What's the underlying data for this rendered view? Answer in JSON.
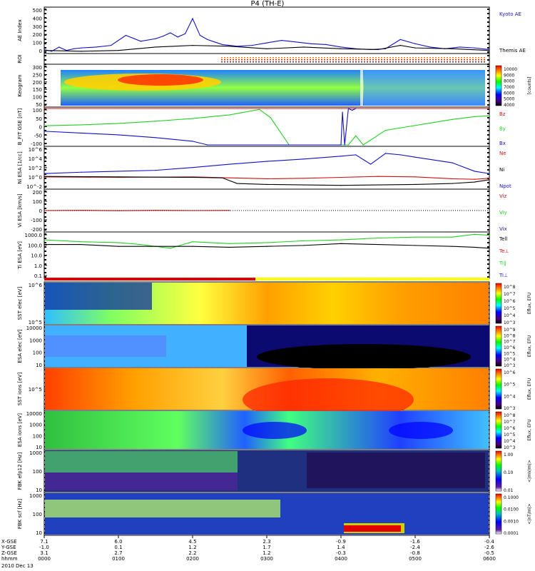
{
  "title": "P4 (TH-E)",
  "date": "2010 Dec 13",
  "colors": {
    "blue": "#1010c8",
    "red": "#d01010",
    "green": "#20d020",
    "black": "#000000"
  },
  "chart_data": [
    {
      "id": "ae",
      "type": "line",
      "ylabel": "AE Index",
      "ticks": [
        "0",
        "100",
        "200",
        "300",
        "400",
        "500"
      ],
      "ylim": [
        0,
        520
      ],
      "legend": [
        "Kyoto AE",
        "Themis AE"
      ],
      "series": [
        {
          "name": "Kyoto AE",
          "color": "#1010c8",
          "x": [
            0,
            0.1,
            0.2,
            0.3,
            0.4,
            0.5,
            0.7,
            0.9,
            1.1,
            1.3,
            1.5,
            1.6,
            1.7,
            1.8,
            1.9,
            2.0,
            2.1,
            2.2,
            2.3,
            2.4,
            2.6,
            2.8,
            3.0,
            3.2,
            3.4,
            3.6,
            3.8,
            4.0,
            4.2,
            4.4,
            4.6,
            4.8,
            5.0,
            5.2,
            5.4,
            5.6,
            5.8,
            6.0
          ],
          "y": [
            30,
            10,
            60,
            20,
            40,
            50,
            60,
            80,
            200,
            130,
            160,
            190,
            230,
            180,
            220,
            400,
            200,
            150,
            120,
            90,
            70,
            80,
            110,
            140,
            120,
            100,
            90,
            60,
            40,
            30,
            40,
            150,
            100,
            60,
            40,
            60,
            50,
            30
          ]
        },
        {
          "name": "Themis AE",
          "color": "#000000",
          "x": [
            0,
            0.5,
            1.0,
            1.5,
            2.0,
            2.5,
            3.0,
            3.5,
            4.0,
            4.5,
            4.8,
            5.0,
            5.5,
            6.0
          ],
          "y": [
            20,
            10,
            20,
            60,
            80,
            70,
            40,
            60,
            40,
            30,
            80,
            50,
            40,
            20
          ]
        }
      ]
    },
    {
      "id": "roi",
      "type": "table",
      "ylabel": "ROI"
    },
    {
      "id": "keo",
      "type": "heatmap",
      "ylabel": "Keogram",
      "ticks": [
        "50",
        "100",
        "150",
        "200",
        "250",
        "300"
      ],
      "cbar": [
        "4000",
        "5000",
        "6000",
        "7000",
        "8000",
        "9000",
        "10000"
      ],
      "cbar_label": "[counts]"
    },
    {
      "id": "bfit",
      "type": "line",
      "ylabel": "B_FIT GSE [nT]",
      "ticks": [
        "-100",
        "-50",
        "0",
        "50",
        "100"
      ],
      "ylim": [
        -100,
        100
      ],
      "legend": [
        "Bz",
        "By",
        "Bx"
      ],
      "series": [
        {
          "name": "Bz",
          "color": "#d01010",
          "x": [
            0,
            0.5,
            1.0,
            1.5,
            2.0,
            2.5,
            3.0,
            3.5,
            4.0,
            4.5,
            5.0,
            5.5,
            6.0
          ],
          "y": [
            100,
            100,
            100,
            100,
            100,
            100,
            100,
            100,
            100,
            100,
            100,
            100,
            100
          ]
        },
        {
          "name": "By",
          "color": "#20d020",
          "x": [
            0,
            0.5,
            1.0,
            1.5,
            2.0,
            2.5,
            2.9,
            3.05,
            3.3,
            4.1,
            4.2,
            4.3,
            4.6,
            4.9,
            5.2,
            5.5,
            5.8,
            6.0
          ],
          "y": [
            5,
            10,
            18,
            30,
            45,
            65,
            95,
            50,
            -100,
            -100,
            -50,
            -100,
            -20,
            0,
            20,
            40,
            55,
            60
          ]
        },
        {
          "name": "Bx",
          "color": "#1010c8",
          "x": [
            0,
            0.5,
            1.0,
            1.5,
            2.0,
            2.2,
            4.0,
            4.02,
            4.05,
            4.1,
            4.15,
            4.2
          ],
          "y": [
            -25,
            -35,
            -45,
            -60,
            -80,
            -100,
            -100,
            80,
            -100,
            100,
            90,
            100
          ]
        }
      ]
    },
    {
      "id": "ni",
      "type": "line",
      "ylabel": "Ni ESA [1/cc]",
      "ticks": [
        "10^-2",
        "10^0",
        "10^2",
        "10^4",
        "10^6"
      ],
      "ylim": [
        -2.5,
        6
      ],
      "legend": [
        "Ne",
        "Ni",
        "Npot"
      ],
      "series": [
        {
          "name": "Ni",
          "color": "#1010c8",
          "x": [
            0,
            0.5,
            1.0,
            1.5,
            2.0,
            2.5,
            3.0,
            3.5,
            4.0,
            4.2,
            4.4,
            4.6,
            4.8,
            5.0,
            5.5,
            5.8,
            6.0
          ],
          "y": [
            0.5,
            0.8,
            1.0,
            1.2,
            1.8,
            2.5,
            3.1,
            3.6,
            4.2,
            4.5,
            2.5,
            4.8,
            4.5,
            4.0,
            2.8,
            1.0,
            0.5
          ]
        },
        {
          "name": "Ne",
          "color": "#d01010",
          "x": [
            0,
            1.0,
            2.0,
            2.5,
            3.0,
            3.5,
            4.0,
            4.5,
            5.0,
            5.5,
            5.8,
            6.0
          ],
          "y": [
            -0.2,
            -0.3,
            -0.2,
            -0.4,
            -0.6,
            -0.5,
            -0.3,
            -0.1,
            -0.2,
            -0.6,
            -0.7,
            -0.5
          ]
        },
        {
          "name": "Npot",
          "color": "#000000",
          "x": [
            0,
            1.0,
            2.0,
            2.4,
            2.6,
            3.0,
            3.5,
            4.0,
            4.5,
            5.0,
            5.5,
            5.8,
            6.0
          ],
          "y": [
            -0.1,
            -0.2,
            -0.3,
            -0.4,
            -1.6,
            -1.8,
            -1.9,
            -2.0,
            -1.9,
            -1.8,
            -1.6,
            -1.3,
            -0.8
          ]
        }
      ]
    },
    {
      "id": "vi",
      "type": "line",
      "ylabel": "Vi ESA [km/s]",
      "ticks": [
        "-200",
        "-100",
        "0",
        "100",
        "200"
      ],
      "ylim": [
        -200,
        200
      ],
      "legend": [
        "Viz",
        "Viy",
        "Vix"
      ],
      "series": [
        {
          "name": "Viz",
          "color": "#d01010",
          "x": [
            0,
            0.5,
            1.0,
            1.5,
            2.0,
            2.5
          ],
          "y": [
            0,
            2,
            -1,
            2,
            0,
            1
          ]
        }
      ]
    },
    {
      "id": "ti",
      "type": "line",
      "ylabel": "Ti ESA [eV]",
      "ticks": [
        "0.1",
        "1.0",
        "10.0",
        "100.0",
        "1000.0"
      ],
      "ylim": [
        -1.3,
        3.4
      ],
      "legend": [
        "Tell",
        "Te⊥",
        "Ti∥",
        "Ti⊥"
      ],
      "series": [
        {
          "name": "Ti∥",
          "color": "#20d020",
          "x": [
            0,
            0.5,
            1.0,
            1.3,
            1.5,
            1.7,
            2.0,
            2.5,
            3.0,
            3.5,
            4.0,
            4.5,
            5.0,
            5.5,
            5.8,
            6.0
          ],
          "y": [
            2.7,
            2.5,
            2.4,
            2.2,
            2.0,
            1.8,
            2.5,
            2.3,
            2.4,
            2.6,
            2.7,
            2.9,
            3.0,
            3.0,
            3.3,
            3.2
          ]
        },
        {
          "name": "Tell",
          "color": "#000000",
          "x": [
            0,
            0.5,
            1.0,
            1.5,
            2.0,
            2.5,
            3.0,
            3.5,
            4.0,
            4.5,
            5.0,
            5.5,
            5.8,
            6.0
          ],
          "y": [
            2.2,
            2.2,
            2.0,
            2.0,
            2.0,
            1.9,
            2.0,
            2.1,
            2.3,
            2.2,
            2.1,
            2.0,
            1.9,
            1.8
          ]
        }
      ]
    },
    {
      "id": "sst_e",
      "type": "heatmap",
      "ylabel": "SST elec [eV]",
      "ticks": [
        "10^5",
        "10^6"
      ],
      "cbar": [
        "10^3",
        "10^4",
        "10^5",
        "10^6",
        "10^7",
        "10^8"
      ],
      "cbar_label": "Eflux, EFU"
    },
    {
      "id": "esa_e",
      "type": "heatmap",
      "ylabel": "ESA elec [eV]",
      "ticks": [
        "10",
        "100",
        "1000",
        "10000"
      ],
      "cbar": [
        "10^3",
        "10^4",
        "10^5",
        "10^6",
        "10^7",
        "10^8",
        "10^9"
      ],
      "cbar_label": "Eflux, EFU"
    },
    {
      "id": "sst_i",
      "type": "heatmap",
      "ylabel": "SST ions [eV]",
      "ticks": [
        "10^5"
      ],
      "cbar": [
        "10^3",
        "10^4",
        "10^5",
        "10^6"
      ],
      "cbar_label": "Eflux, EFU"
    },
    {
      "id": "esa_i",
      "type": "heatmap",
      "ylabel": "ESA ions [eV]",
      "ticks": [
        "10",
        "100",
        "1000",
        "10000"
      ],
      "cbar": [
        "10^3",
        "10^4",
        "10^5",
        "10^6",
        "10^7",
        "10^8"
      ],
      "cbar_label": "Eflux, EFU"
    },
    {
      "id": "fbk1",
      "type": "heatmap",
      "ylabel": "FBK efp12 [Hz]",
      "ticks": [
        "10",
        "100",
        "1000"
      ],
      "cbar": [
        "0.01",
        "0.10",
        "1.00"
      ],
      "cbar_label": "<|mV/m|>"
    },
    {
      "id": "fbk2",
      "type": "heatmap",
      "ylabel": "FBK scf [Hz]",
      "ticks": [
        "10",
        "100",
        "1000"
      ],
      "cbar": [
        "0.0001",
        "0.0010",
        "0.0100",
        "0.1000"
      ],
      "cbar_label": "<|nT/m|>"
    }
  ],
  "xaxis": {
    "row_labels": [
      "X-GSE",
      "Y-GSE",
      "Z-GSE",
      "hhmm"
    ],
    "columns": [
      [
        "7.1",
        "-1.0",
        "3.1",
        "0000"
      ],
      [
        "6.0",
        "0.1",
        "2.7",
        "0100"
      ],
      [
        "4.5",
        "1.2",
        "2.2",
        "0200"
      ],
      [
        "2.3",
        "1.7",
        "1.2",
        "0300"
      ],
      [
        "-0.9",
        "1.4",
        "-0.3",
        "0400"
      ],
      [
        "-1.6",
        "-2.4",
        "-0.8",
        "0500"
      ],
      [
        "-0.4",
        "-2.6",
        "-0.5",
        "0600"
      ]
    ]
  }
}
